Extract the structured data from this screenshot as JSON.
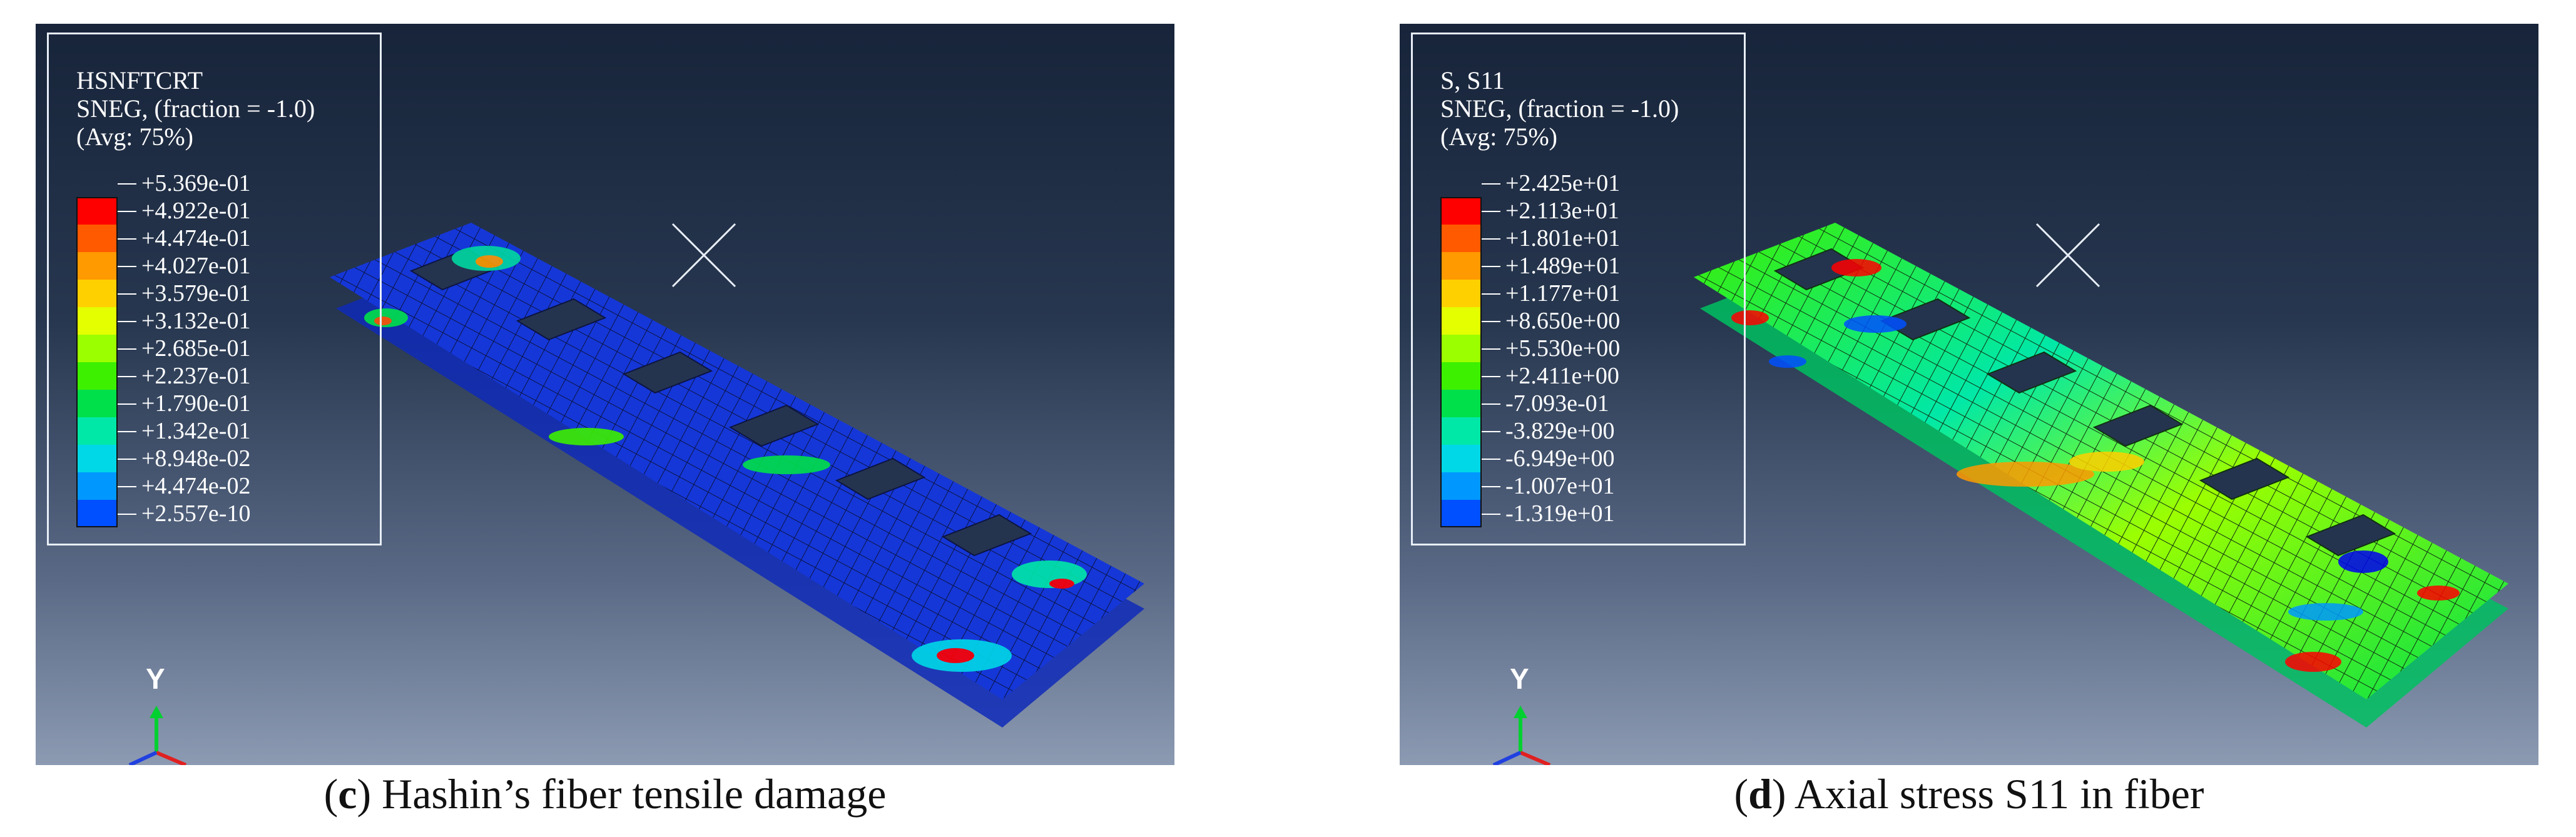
{
  "panels": [
    {
      "legend_title": "HSNFTCRT",
      "legend_sub1": "SNEG, (fraction = -1.0)",
      "legend_sub2": "(Avg: 75%)",
      "values": [
        "+5.369e-01",
        "+4.922e-01",
        "+4.474e-01",
        "+4.027e-01",
        "+3.579e-01",
        "+3.132e-01",
        "+2.685e-01",
        "+2.237e-01",
        "+1.790e-01",
        "+1.342e-01",
        "+8.948e-02",
        "+4.474e-02",
        "+2.557e-10"
      ],
      "axis_label": "Y",
      "caption_letter": "c",
      "caption_text": " Hashin’s fiber tensile damage"
    },
    {
      "legend_title": "S, S11",
      "legend_sub1": "SNEG, (fraction = -1.0)",
      "legend_sub2": "(Avg: 75%)",
      "values": [
        "+2.425e+01",
        "+2.113e+01",
        "+1.801e+01",
        "+1.489e+01",
        "+1.177e+01",
        "+8.650e+00",
        "+5.530e+00",
        "+2.411e+00",
        "-7.093e-01",
        "-3.829e+00",
        "-6.949e+00",
        "-1.007e+01",
        "-1.319e+01"
      ],
      "axis_label": "Y",
      "caption_letter": "d",
      "caption_text": " Axial stress S11 in fiber"
    }
  ],
  "colors": {
    "scale": [
      "#ff0000",
      "#ff5a00",
      "#ff9a00",
      "#ffd000",
      "#e4ff00",
      "#9cff00",
      "#3cf000",
      "#00e04a",
      "#00e8a8",
      "#00d8e8",
      "#0098ff",
      "#0050ff",
      "#0000f0"
    ],
    "background_top": "#17243a",
    "background_bottom": "#8c9ab2"
  },
  "icons": [
    "triad-axis-icon",
    "view-center-x-icon"
  ]
}
